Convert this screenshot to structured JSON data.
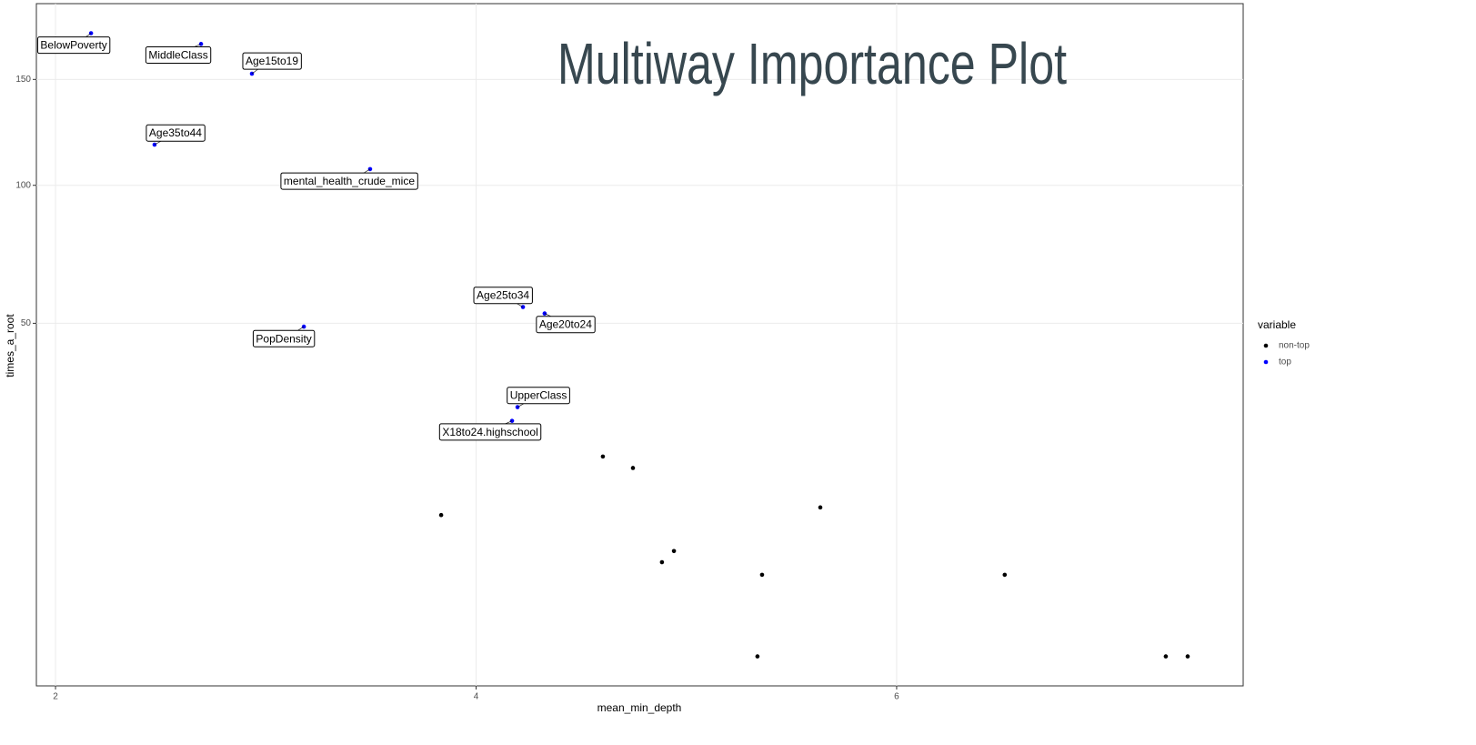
{
  "chart_data": {
    "type": "scatter",
    "title": "Multiway Importance Plot",
    "x_label": "mean_min_depth",
    "y_label": "times_a_root",
    "xlim": [
      1.909,
      7.648
    ],
    "xticks": [
      2,
      4,
      6
    ],
    "ylim": [
      0,
      192
    ],
    "yticks": [
      50,
      100,
      150
    ],
    "y_scale": "sqrt",
    "grid": true,
    "legend_title": "variable",
    "legend_position": "right",
    "series": [
      {
        "name": "non-top",
        "color": "#000000",
        "x": [
          4.603,
          4.746,
          5.637,
          3.834,
          4.941,
          4.884,
          5.36,
          6.514,
          5.338,
          7.28,
          7.384
        ],
        "values": [
          18,
          16,
          10,
          9,
          5,
          4,
          3,
          3,
          0,
          0,
          0
        ]
      },
      {
        "name": "top",
        "color": "#0000ff",
        "x": [
          2.169,
          2.692,
          2.934,
          2.471,
          3.496,
          4.223,
          4.326,
          3.181,
          4.197,
          4.171
        ],
        "values": [
          175,
          169,
          153,
          118,
          107,
          55,
          53,
          49,
          28,
          25
        ],
        "labels": [
          "BelowPoverty",
          "MiddleClass",
          "Age15to19",
          "Age35to44",
          "mental_health_crude_mice",
          "Age25to34",
          "Age20to24",
          "PopDensity",
          "UpperClass",
          "X18to24.highschool"
        ]
      }
    ]
  }
}
